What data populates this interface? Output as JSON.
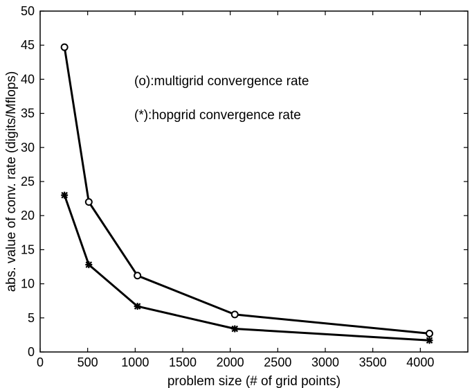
{
  "chart_data": {
    "type": "line",
    "title": "",
    "xlabel": "problem size (# of grid points)",
    "ylabel": "abs. value of conv. rate (digits/Mflops)",
    "xlim": [
      0,
      4500
    ],
    "ylim": [
      0,
      50
    ],
    "xticks": [
      0,
      500,
      1000,
      1500,
      2000,
      2500,
      3000,
      3500,
      4000
    ],
    "yticks": [
      0,
      5,
      10,
      15,
      20,
      25,
      30,
      35,
      40,
      45,
      50
    ],
    "grid": false,
    "series": [
      {
        "name": "multigrid",
        "marker": "circle",
        "x": [
          256,
          512,
          1024,
          2048,
          4096
        ],
        "y": [
          44.7,
          22.0,
          11.2,
          5.5,
          2.7
        ]
      },
      {
        "name": "hopgrid",
        "marker": "star",
        "x": [
          256,
          512,
          1024,
          2048,
          4096
        ],
        "y": [
          23.0,
          12.8,
          6.7,
          3.4,
          1.7
        ]
      }
    ],
    "annotations": [
      "(o):multigrid convergence rate",
      "(*):hopgrid convergence rate"
    ],
    "line_color": "#000000"
  }
}
